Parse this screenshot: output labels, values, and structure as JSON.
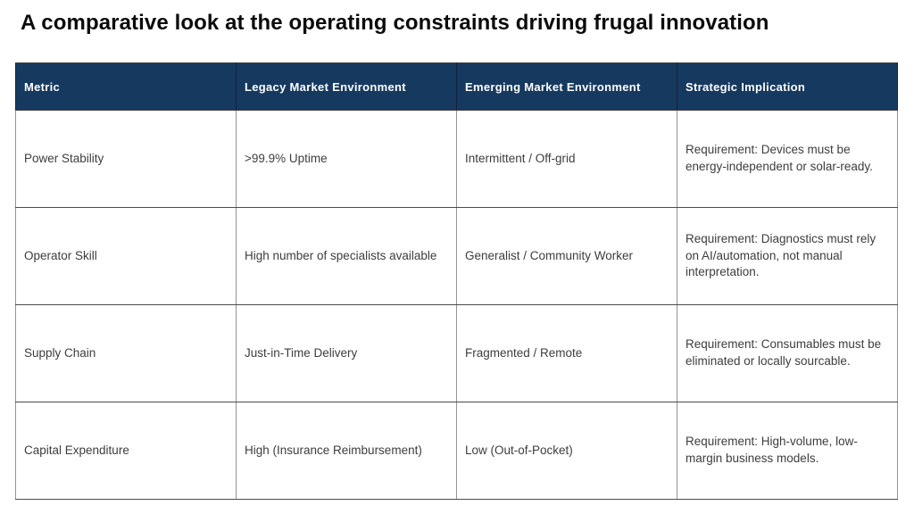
{
  "title": "A comparative look at the operating constraints driving frugal innovation",
  "colors": {
    "title_text": "#0b0b0b",
    "header_bg": "#16395f",
    "header_text": "#ffffff",
    "body_text": "#3d3d3d",
    "border_gray": "#949494",
    "border_dark": "#4c4c4c"
  },
  "table": {
    "columns": [
      "Metric",
      "Legacy Market Environment",
      "Emerging Market Environment",
      "Strategic Implication"
    ],
    "rows": [
      [
        "Power Stability",
        ">99.9% Uptime",
        "Intermittent / Off-grid",
        "Requirement: Devices must be energy-independent or solar-ready."
      ],
      [
        "Operator Skill",
        "High number of specialists available",
        "Generalist / Community Worker",
        "Requirement: Diagnostics must rely on AI/automation, not manual interpretation."
      ],
      [
        "Supply Chain",
        "Just-in-Time Delivery",
        "Fragmented / Remote",
        "Requirement: Consumables must be eliminated or locally sourcable."
      ],
      [
        "Capital Expenditure",
        "High (Insurance Reimbursement)",
        "Low (Out-of-Pocket)",
        "Requirement: High-volume, low-margin business models."
      ]
    ]
  }
}
